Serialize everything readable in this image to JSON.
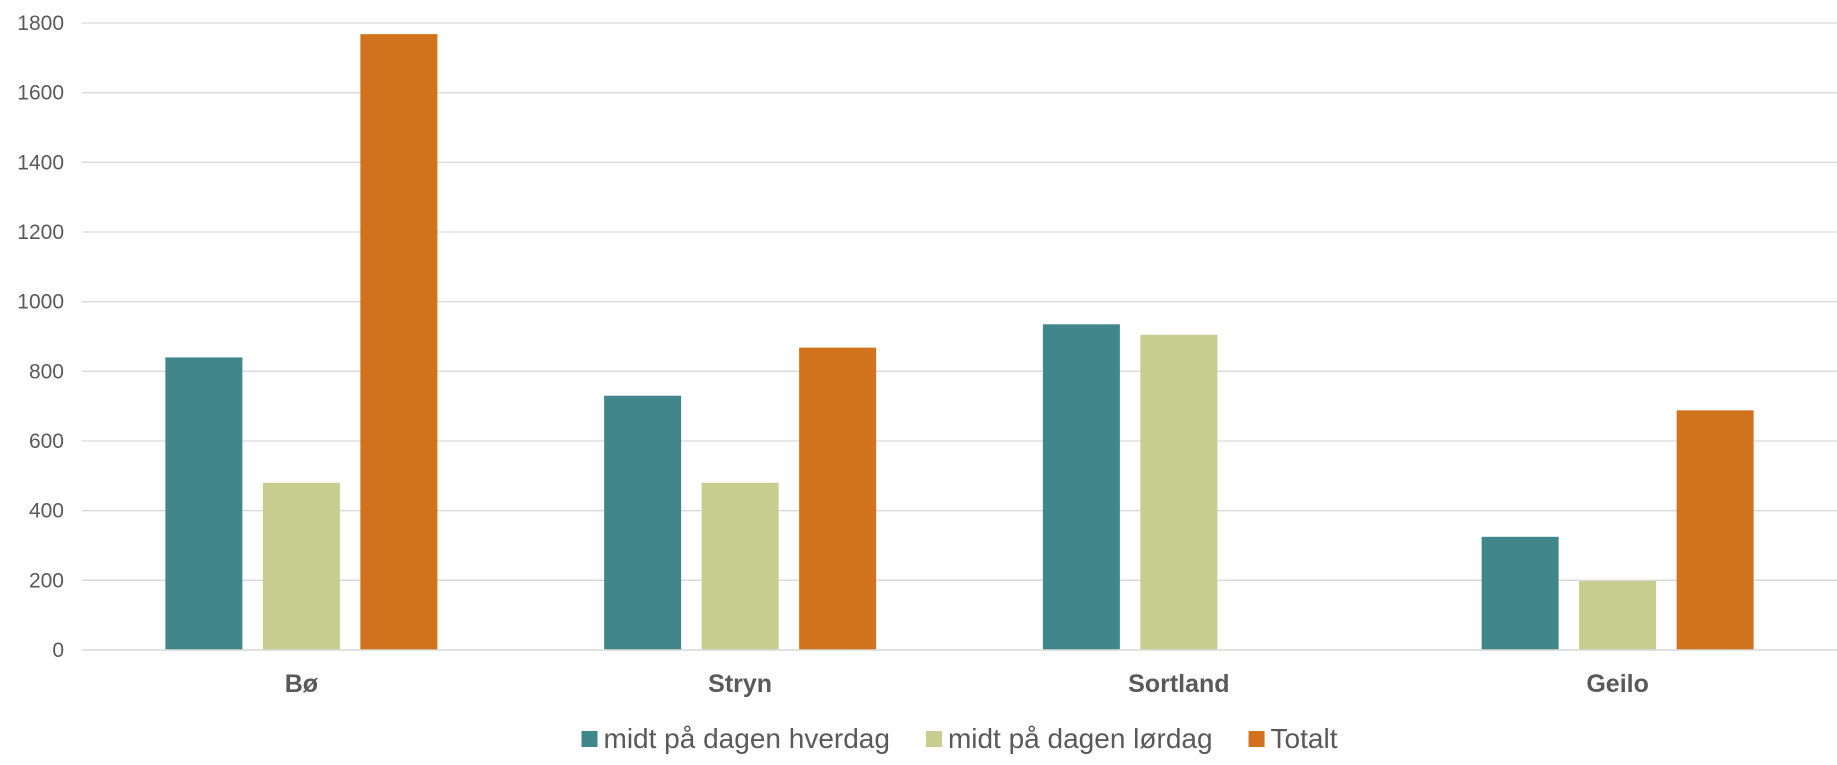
{
  "chart_data": {
    "type": "bar",
    "title": "",
    "xlabel": "",
    "ylabel": "",
    "categories": [
      "Bø",
      "Stryn",
      "Sortland",
      "Geilo"
    ],
    "series": [
      {
        "name": "midt på dagen hverdag",
        "color": "#40868b",
        "values": [
          840,
          730,
          935,
          325
        ]
      },
      {
        "name": "midt på dagen lørdag",
        "color": "#c7cd8e",
        "values": [
          480,
          480,
          905,
          198
        ]
      },
      {
        "name": "Totalt",
        "color": "#d1721d",
        "values": [
          1768,
          868,
          null,
          688
        ]
      }
    ],
    "ylim": [
      0,
      1800
    ],
    "yticks": [
      0,
      200,
      400,
      600,
      800,
      1000,
      1200,
      1400,
      1600,
      1800
    ],
    "grid": true,
    "legend_position": "bottom"
  }
}
